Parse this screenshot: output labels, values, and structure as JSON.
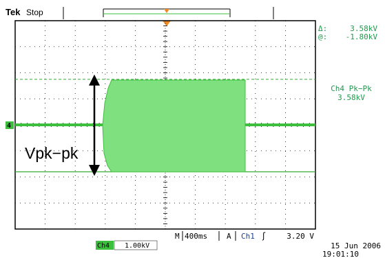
{
  "header": {
    "brand": "Tek",
    "run_state": "Stop"
  },
  "cursor_readout": {
    "delta_label": "Δ:",
    "delta_value": "3.58kV",
    "at_label": "@:",
    "at_value": "-1.80kV"
  },
  "measurement": {
    "label": "Ch4 Pk−Pk",
    "value": "3.58kV"
  },
  "annotation": {
    "text": "Vpk−pk"
  },
  "channel_marker": {
    "label": "4"
  },
  "status_bar": {
    "timebase_prefix": "M",
    "timebase_value": "400ms",
    "trigger_mode": "A",
    "trigger_source": "Ch1",
    "trigger_slope_symbol": "ʃ",
    "trigger_level": "3.20 V",
    "channel_name": "Ch4",
    "channel_scale": "1.00kV"
  },
  "timestamp": {
    "date": "15 Jun 2006",
    "time": "19:01:10"
  },
  "colors": {
    "trace": "#3cbf3c",
    "fill": "#7fe07f",
    "cursor": "#33aa33",
    "trigger_marker": "#f08a24",
    "readout_text": "#1f9a4d",
    "graticule": "#000000"
  }
}
